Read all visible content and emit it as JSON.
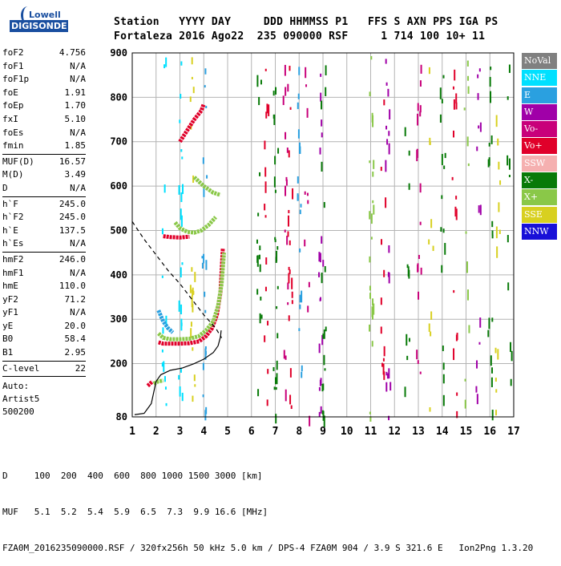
{
  "logo": {
    "line1": "Lowell",
    "line2": "DIGISONDE"
  },
  "header": {
    "labels": "Station   YYYY DAY     DDD HHMMSS P1   FFS S AXN PPS IGA PS",
    "values": "Fortaleza 2016 Ago22  235 090000 RSF     1 714 100 10+ 11"
  },
  "params": {
    "group1": [
      {
        "k": "foF2",
        "v": "4.756"
      },
      {
        "k": "foF1",
        "v": "N/A"
      },
      {
        "k": "foF1p",
        "v": "N/A"
      },
      {
        "k": "foE",
        "v": "1.91"
      },
      {
        "k": "foEp",
        "v": "1.70"
      },
      {
        "k": "fxI",
        "v": "5.10"
      },
      {
        "k": "foEs",
        "v": "N/A"
      },
      {
        "k": "fmin",
        "v": "1.85"
      }
    ],
    "group2": [
      {
        "k": "MUF(D)",
        "v": "16.57"
      },
      {
        "k": "M(D)",
        "v": "3.49"
      },
      {
        "k": "D",
        "v": "N/A"
      }
    ],
    "group3": [
      {
        "k": "h`F",
        "v": "245.0"
      },
      {
        "k": "h`F2",
        "v": "245.0"
      },
      {
        "k": "h`E",
        "v": "137.5"
      },
      {
        "k": "h`Es",
        "v": "N/A"
      }
    ],
    "group4": [
      {
        "k": "hmF2",
        "v": "246.0"
      },
      {
        "k": "hmF1",
        "v": "N/A"
      },
      {
        "k": "hmE",
        "v": "110.0"
      },
      {
        "k": "yF2",
        "v": "71.2"
      },
      {
        "k": "yF1",
        "v": "N/A"
      },
      {
        "k": "yE",
        "v": "20.0"
      },
      {
        "k": "B0",
        "v": "58.4"
      },
      {
        "k": "B1",
        "v": "2.95"
      }
    ],
    "clevel": {
      "k": "C-level",
      "v": "22"
    },
    "auto": [
      "Auto:",
      "Artist5",
      "500200"
    ]
  },
  "legend": [
    {
      "label": "NoVal",
      "color": "#808080"
    },
    {
      "label": "NNE",
      "color": "#00e0ff"
    },
    {
      "label": "E",
      "color": "#2aa0e0"
    },
    {
      "label": "W",
      "color": "#a000a8"
    },
    {
      "label": "Vo-",
      "color": "#c8007a"
    },
    {
      "label": "Vo+",
      "color": "#e0002a"
    },
    {
      "label": "SSW",
      "color": "#f5b0b0"
    },
    {
      "label": "X-",
      "color": "#087a08"
    },
    {
      "label": "X+",
      "color": "#8ac848"
    },
    {
      "label": "SSE",
      "color": "#d8d020"
    },
    {
      "label": "NNW",
      "color": "#1810d8"
    }
  ],
  "footer": {
    "line1": "D     100  200  400  600  800 1000 1500 3000 [km]",
    "line2": "MUF   5.1  5.2  5.4  5.9  6.5  7.3  9.9 16.6 [MHz]",
    "line3": "FZA0M_2016235090000.RSF / 320fx256h 50 kHz 5.0 km / DPS-4 FZA0M 904 / 3.9 S 321.6 E   Ion2Png 1.3.20"
  },
  "chart_data": {
    "type": "scatter",
    "title": "",
    "xlabel": "",
    "ylabel": "",
    "xlim": [
      1,
      17
    ],
    "ylim": [
      80,
      900
    ],
    "xticks": [
      "1",
      "2",
      "3",
      "4",
      "5",
      "6",
      "7",
      "8",
      "9",
      "10",
      "11",
      "12",
      "13",
      "14",
      "15",
      "16",
      "17"
    ],
    "yticks": [
      "80",
      "200",
      "300",
      "400",
      "500",
      "600",
      "700",
      "800",
      "900"
    ],
    "grid": true,
    "traces": [
      {
        "name": "",
        "color": "#e0002a",
        "x": [
          2.1,
          2.3,
          2.6,
          3.0,
          3.4,
          3.8,
          4.1,
          4.35,
          4.55,
          4.7,
          4.8
        ],
        "y": [
          248,
          245,
          245,
          245,
          246,
          250,
          262,
          280,
          310,
          360,
          460
        ]
      },
      {
        "name": "",
        "color": "#8ac848",
        "x": [
          2.1,
          2.3,
          2.6,
          3.0,
          3.4,
          3.8,
          4.1,
          4.4,
          4.6,
          4.75,
          4.85
        ],
        "y": [
          268,
          258,
          255,
          255,
          256,
          262,
          275,
          295,
          330,
          380,
          450
        ]
      },
      {
        "name": "",
        "color": "#e0002a",
        "x": [
          2.3,
          2.6,
          3.0,
          3.4
        ],
        "y": [
          487,
          485,
          484,
          486
        ]
      },
      {
        "name": "",
        "color": "#8ac848",
        "x": [
          2.8,
          3.0,
          3.3,
          3.6,
          3.9,
          4.2,
          4.5
        ],
        "y": [
          518,
          505,
          497,
          495,
          500,
          512,
          530
        ]
      },
      {
        "name": "",
        "color": "#8ac848",
        "x": [
          3.6,
          4.0,
          4.4,
          4.7
        ],
        "y": [
          620,
          600,
          585,
          580
        ]
      },
      {
        "name": "",
        "color": "#e0002a",
        "x": [
          3.0,
          3.3,
          3.6,
          3.9,
          4.0
        ],
        "y": [
          700,
          725,
          750,
          770,
          785
        ]
      },
      {
        "name": "",
        "color": "#2aa0e0",
        "x": [
          2.1,
          2.3,
          2.5,
          2.7
        ],
        "y": [
          320,
          295,
          280,
          270
        ]
      },
      {
        "name": "",
        "color": "#e0002a",
        "x": [
          1.65,
          1.75,
          1.85
        ],
        "y": [
          150,
          155,
          160
        ]
      },
      {
        "name": "",
        "color": "#8ac848",
        "x": [
          1.9,
          2.1,
          2.3
        ],
        "y": [
          155,
          160,
          162
        ]
      }
    ],
    "profile_solid": {
      "color": "#000000",
      "x": [
        1.1,
        1.5,
        1.8,
        1.9,
        2.0,
        2.2,
        2.6,
        3.1,
        3.6,
        4.0,
        4.4,
        4.6,
        4.7,
        4.73
      ],
      "y": [
        85,
        88,
        110,
        135,
        160,
        175,
        185,
        190,
        200,
        210,
        225,
        240,
        260,
        275
      ]
    },
    "profile_dashed": {
      "color": "#000000",
      "x": [
        1.0,
        1.5,
        2.0,
        2.5,
        3.0,
        3.5,
        4.0,
        4.5,
        4.75
      ],
      "y": [
        520,
        480,
        445,
        410,
        380,
        345,
        310,
        280,
        258
      ]
    },
    "noise_columns": [
      {
        "x": 6.3,
        "color": "#087a08"
      },
      {
        "x": 6.6,
        "color": "#e0002a"
      },
      {
        "x": 7.0,
        "color": "#087a08"
      },
      {
        "x": 7.4,
        "color": "#c8007a"
      },
      {
        "x": 7.6,
        "color": "#e0002a"
      },
      {
        "x": 8.0,
        "color": "#2aa0e0"
      },
      {
        "x": 8.3,
        "color": "#c8007a"
      },
      {
        "x": 8.9,
        "color": "#a000a8"
      },
      {
        "x": 9.0,
        "color": "#087a08"
      },
      {
        "x": 11.0,
        "color": "#8ac848"
      },
      {
        "x": 11.5,
        "color": "#e0002a"
      },
      {
        "x": 11.7,
        "color": "#a000a8"
      },
      {
        "x": 12.5,
        "color": "#087a08"
      },
      {
        "x": 13.0,
        "color": "#c8007a"
      },
      {
        "x": 13.5,
        "color": "#d8d020"
      },
      {
        "x": 14.0,
        "color": "#087a08"
      },
      {
        "x": 14.5,
        "color": "#e0002a"
      },
      {
        "x": 15.0,
        "color": "#8ac848"
      },
      {
        "x": 15.5,
        "color": "#a000a8"
      },
      {
        "x": 16.0,
        "color": "#087a08"
      },
      {
        "x": 16.3,
        "color": "#d8d020"
      },
      {
        "x": 16.8,
        "color": "#087a08"
      },
      {
        "x": 3.0,
        "color": "#00e0ff"
      },
      {
        "x": 2.3,
        "color": "#00e0ff"
      },
      {
        "x": 4.0,
        "color": "#2aa0e0"
      },
      {
        "x": 3.5,
        "color": "#d8d020"
      }
    ]
  }
}
